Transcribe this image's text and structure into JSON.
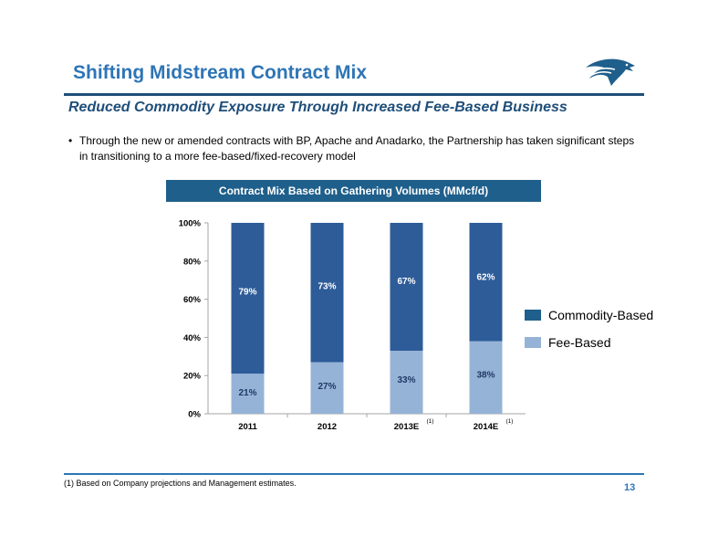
{
  "header": {
    "title": "Shifting Midstream Contract Mix",
    "subtitle": "Reduced Commodity Exposure Through Increased Fee-Based Business"
  },
  "body": {
    "bullet_marker": "•",
    "bullet_text": "Through the new or amended contracts with BP, Apache and Anadarko, the Partnership has taken significant steps in transitioning to a more fee-based/fixed-recovery model"
  },
  "chart_header": "Contract Mix Based on Gathering Volumes (MMcf/d)",
  "chart_data": {
    "type": "bar",
    "stacked": true,
    "categories": [
      "2011",
      "2012",
      "2013E",
      "2014E"
    ],
    "category_footnotes": [
      "",
      "",
      "(1)",
      "(1)"
    ],
    "series": [
      {
        "name": "Fee-Based",
        "values": [
          21,
          27,
          33,
          38
        ],
        "labels": [
          "21%",
          "27%",
          "33%",
          "38%"
        ],
        "color": "#95b3d7"
      },
      {
        "name": "Commodity-Based",
        "values": [
          79,
          73,
          67,
          62
        ],
        "labels": [
          "79%",
          "73%",
          "67%",
          "62%"
        ],
        "color": "#2e5c99"
      }
    ],
    "ylim": [
      0,
      100
    ],
    "yticks": [
      0,
      20,
      40,
      60,
      80,
      100
    ],
    "ytick_labels": [
      "0%",
      "20%",
      "40%",
      "60%",
      "80%",
      "100%"
    ],
    "grid": false,
    "legend_placement": "right"
  },
  "legend": {
    "commodity_label": "Commodity-Based",
    "commodity_color": "#1f5f8b",
    "fee_label": "Fee-Based",
    "fee_color": "#95b3d7"
  },
  "footer": {
    "footnote": "(1) Based on Company projections and Management estimates.",
    "page_number": "13"
  }
}
